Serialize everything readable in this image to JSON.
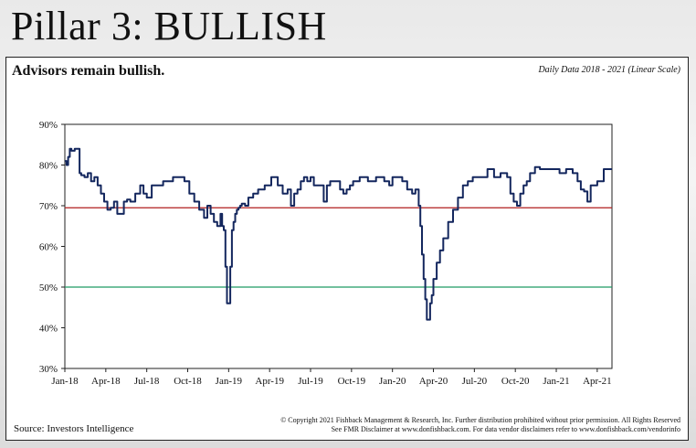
{
  "slide": {
    "title": "Pillar 3: BULLISH"
  },
  "panel": {
    "heading": "Advisors remain bullish.",
    "subtitle": "Daily Data 2018 - 2021 (Linear Scale)",
    "source": "Source: Investors Intelligence",
    "copyright_line1": "© Copyright 2021 Fishback Management & Research, Inc. Further distribution prohibited without prior permission. All Rights Reserved",
    "copyright_line2": "See FMR Disclaimer at www.donfishback.com. For data vendor disclaimers refer to www.donfishback.com/vendorinfo"
  },
  "colors": {
    "series": "#14275e",
    "line_70": "#b11e1e",
    "line_50": "#1e9a64",
    "gridline": "#999999"
  },
  "chart_data": {
    "type": "line",
    "ylim": [
      30,
      90
    ],
    "y_ticks": [
      30,
      40,
      50,
      60,
      70,
      80,
      90
    ],
    "y_tick_labels": [
      "30%",
      "40%",
      "50%",
      "60%",
      "70%",
      "80%",
      "90%"
    ],
    "x_range": [
      2018.0,
      2021.34
    ],
    "x_ticks": [
      2018.0,
      2018.25,
      2018.5,
      2018.75,
      2019.0,
      2019.25,
      2019.5,
      2019.75,
      2020.0,
      2020.25,
      2020.5,
      2020.75,
      2021.0,
      2021.25
    ],
    "x_tick_labels": [
      "Jan-18",
      "Apr-18",
      "Jul-18",
      "Oct-18",
      "Jan-19",
      "Apr-19",
      "Jul-19",
      "Oct-19",
      "Jan-20",
      "Apr-20",
      "Jul-20",
      "Oct-20",
      "Jan-21",
      "Apr-21"
    ],
    "reference_lines": [
      {
        "value": 69.5,
        "color": "#b11e1e"
      },
      {
        "value": 50,
        "color": "#1e9a64"
      }
    ],
    "series": [
      {
        "x": [
          2018.0,
          2018.01,
          2018.02,
          2018.03,
          2018.04,
          2018.06,
          2018.07,
          2018.09,
          2018.1,
          2018.12,
          2018.14,
          2018.16,
          2018.18,
          2018.2,
          2018.22,
          2018.24,
          2018.26,
          2018.28,
          2018.3,
          2018.32,
          2018.34,
          2018.36,
          2018.38,
          2018.4,
          2018.43,
          2018.46,
          2018.48,
          2018.5,
          2018.53,
          2018.56,
          2018.6,
          2018.63,
          2018.66,
          2018.7,
          2018.73,
          2018.76,
          2018.79,
          2018.82,
          2018.85,
          2018.87,
          2018.89,
          2018.91,
          2018.93,
          2018.95,
          2018.96,
          2018.97,
          2018.98,
          2018.99,
          2019.0,
          2019.01,
          2019.02,
          2019.03,
          2019.04,
          2019.05,
          2019.06,
          2019.07,
          2019.08,
          2019.1,
          2019.12,
          2019.15,
          2019.18,
          2019.22,
          2019.26,
          2019.3,
          2019.33,
          2019.36,
          2019.38,
          2019.4,
          2019.42,
          2019.44,
          2019.46,
          2019.48,
          2019.5,
          2019.52,
          2019.55,
          2019.58,
          2019.6,
          2019.62,
          2019.64,
          2019.66,
          2019.68,
          2019.7,
          2019.72,
          2019.74,
          2019.76,
          2019.8,
          2019.85,
          2019.9,
          2019.95,
          2019.98,
          2020.0,
          2020.03,
          2020.06,
          2020.09,
          2020.12,
          2020.14,
          2020.16,
          2020.17,
          2020.18,
          2020.19,
          2020.2,
          2020.21,
          2020.22,
          2020.23,
          2020.24,
          2020.25,
          2020.27,
          2020.29,
          2020.31,
          2020.34,
          2020.37,
          2020.4,
          2020.43,
          2020.46,
          2020.49,
          2020.52,
          2020.55,
          2020.58,
          2020.62,
          2020.66,
          2020.7,
          2020.72,
          2020.74,
          2020.76,
          2020.78,
          2020.8,
          2020.82,
          2020.84,
          2020.87,
          2020.9,
          2020.94,
          2020.98,
          2021.02,
          2021.06,
          2021.1,
          2021.13,
          2021.15,
          2021.17,
          2021.19,
          2021.21,
          2021.23,
          2021.25,
          2021.27,
          2021.29,
          2021.31,
          2021.34
        ],
        "y": [
          81,
          80,
          82,
          84,
          83.5,
          84,
          84,
          78,
          77.5,
          77,
          78,
          76,
          77,
          75,
          73,
          71,
          69,
          69.5,
          71,
          68,
          68,
          71,
          71.5,
          71,
          73,
          75,
          73,
          72,
          75,
          75,
          76,
          76,
          77,
          77,
          76,
          73,
          71,
          69,
          67,
          70,
          68,
          66,
          65,
          68,
          65,
          64,
          55,
          46,
          46,
          55,
          64,
          66,
          68,
          69,
          69.5,
          70,
          70.5,
          70,
          72,
          73,
          74,
          75,
          77,
          75,
          73,
          74,
          70,
          73,
          74,
          76,
          77,
          76,
          77,
          75,
          75,
          71,
          75,
          76,
          76,
          76,
          74,
          73,
          74,
          75,
          76,
          77,
          76,
          77,
          76,
          75,
          77,
          77,
          76,
          74,
          73,
          74,
          70,
          65,
          58,
          52,
          47,
          42,
          42,
          46,
          48,
          52,
          56,
          59,
          62,
          66,
          69,
          72,
          75,
          76,
          77,
          77,
          77,
          79,
          77,
          78,
          77,
          73,
          71,
          70,
          73,
          75,
          76,
          78,
          79.5,
          79,
          79,
          79,
          78,
          79,
          78,
          76,
          74,
          73.5,
          71,
          75,
          75,
          76,
          76,
          79,
          79,
          79
        ]
      }
    ]
  }
}
